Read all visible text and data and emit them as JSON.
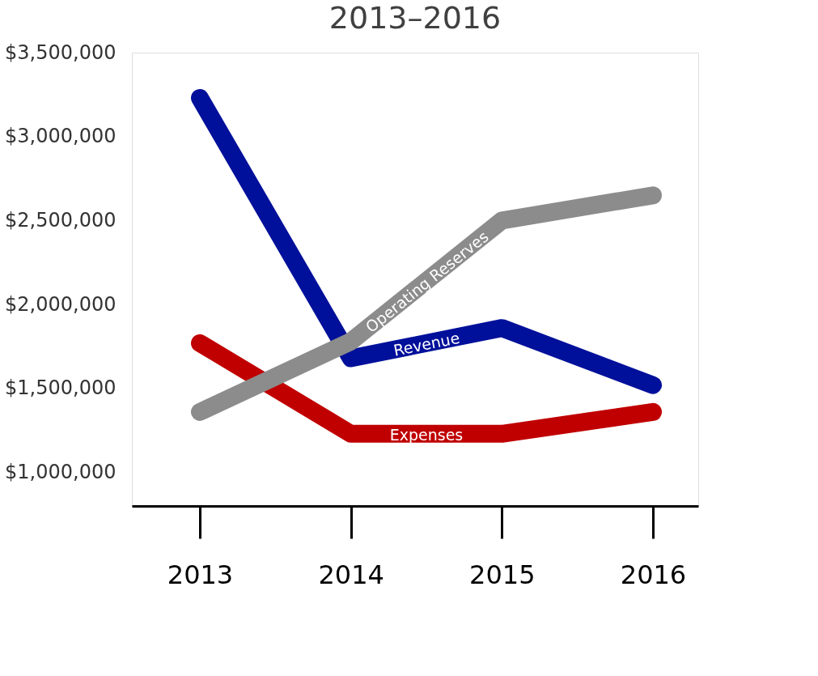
{
  "chart_data": {
    "type": "line",
    "title": "2013–2016",
    "categories": [
      "2013",
      "2014",
      "2015",
      "2016"
    ],
    "series": [
      {
        "name": "Revenue",
        "color": "#00109a",
        "values": [
          3230000,
          1680000,
          1860000,
          1520000
        ]
      },
      {
        "name": "Expenses",
        "color": "#c00000",
        "values": [
          1770000,
          1230000,
          1230000,
          1360000
        ]
      },
      {
        "name": "Operating Reserves",
        "color": "#8c8c8c",
        "values": [
          1360000,
          1780000,
          2500000,
          2650000
        ]
      }
    ],
    "ylim": [
      800000,
      3500000
    ],
    "yticks": [
      {
        "value": 1000000,
        "label": "$1,000,000"
      },
      {
        "value": 1500000,
        "label": "$1,500,000"
      },
      {
        "value": 2000000,
        "label": "$2,000,000"
      },
      {
        "value": 2500000,
        "label": "$2,500,000"
      },
      {
        "value": 3000000,
        "label": "$3,000,000"
      },
      {
        "value": 3500000,
        "label": "$3,500,000"
      }
    ],
    "grid": false,
    "legend": false,
    "line_style": "solid"
  }
}
